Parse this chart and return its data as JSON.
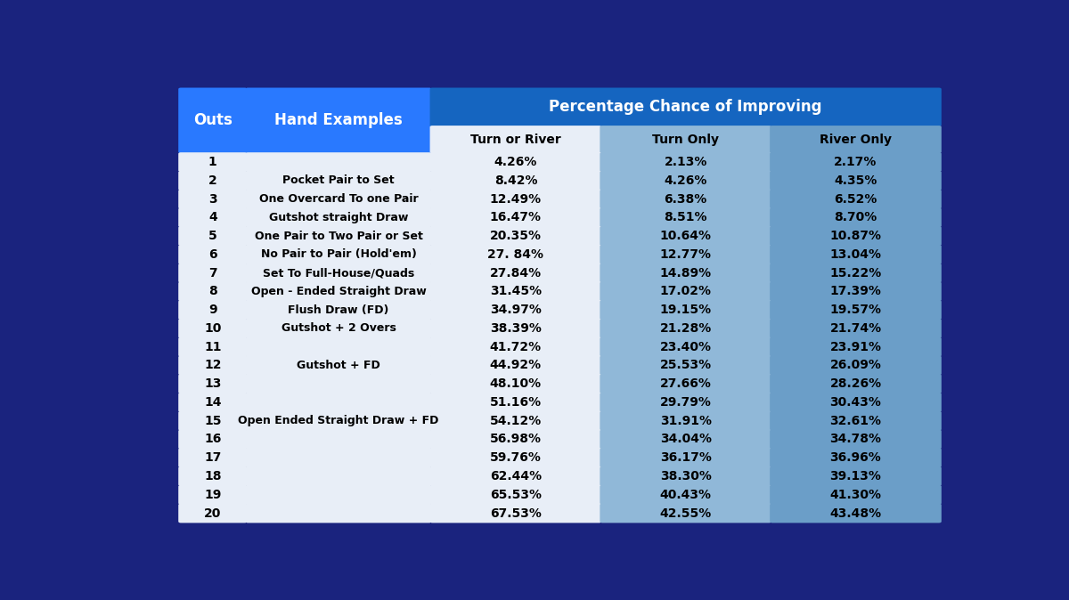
{
  "background_color": "#1a237e",
  "header_blue_bright": "#2979ff",
  "header_blue_mid": "#1565c0",
  "cell_white": "#e8eef7",
  "cell_blue_light": "#90b8d8",
  "cell_blue_mid": "#6b9ec8",
  "rows": [
    [
      1,
      "",
      "4.26%",
      "2.13%",
      "2.17%"
    ],
    [
      2,
      "Pocket Pair to Set",
      "8.42%",
      "4.26%",
      "4.35%"
    ],
    [
      3,
      "One Overcard To one Pair",
      "12.49%",
      "6.38%",
      "6.52%"
    ],
    [
      4,
      "Gutshot straight Draw",
      "16.47%",
      "8.51%",
      "8.70%"
    ],
    [
      5,
      "One Pair to Two Pair or Set",
      "20.35%",
      "10.64%",
      "10.87%"
    ],
    [
      6,
      "No Pair to Pair (Hold'em)",
      "27. 84%",
      "12.77%",
      "13.04%"
    ],
    [
      7,
      "Set To Full-House/Quads",
      "27.84%",
      "14.89%",
      "15.22%"
    ],
    [
      8,
      "Open - Ended Straight Draw",
      "31.45%",
      "17.02%",
      "17.39%"
    ],
    [
      9,
      "Flush Draw (FD)",
      "34.97%",
      "19.15%",
      "19.57%"
    ],
    [
      10,
      "Gutshot + 2 Overs",
      "38.39%",
      "21.28%",
      "21.74%"
    ],
    [
      11,
      "",
      "41.72%",
      "23.40%",
      "23.91%"
    ],
    [
      12,
      "Gutshot + FD",
      "44.92%",
      "25.53%",
      "26.09%"
    ],
    [
      13,
      "",
      "48.10%",
      "27.66%",
      "28.26%"
    ],
    [
      14,
      "",
      "51.16%",
      "29.79%",
      "30.43%"
    ],
    [
      15,
      "Open Ended Straight Draw + FD",
      "54.12%",
      "31.91%",
      "32.61%"
    ],
    [
      16,
      "",
      "56.98%",
      "34.04%",
      "34.78%"
    ],
    [
      17,
      "",
      "59.76%",
      "36.17%",
      "36.96%"
    ],
    [
      18,
      "",
      "62.44%",
      "38.30%",
      "39.13%"
    ],
    [
      19,
      "",
      "65.53%",
      "40.43%",
      "41.30%"
    ],
    [
      20,
      "",
      "67.53%",
      "42.55%",
      "43.48%"
    ]
  ],
  "merged_header": "Percentage Chance of Improving",
  "subheaders": [
    "Turn or River",
    "Turn Only",
    "River Only"
  ]
}
